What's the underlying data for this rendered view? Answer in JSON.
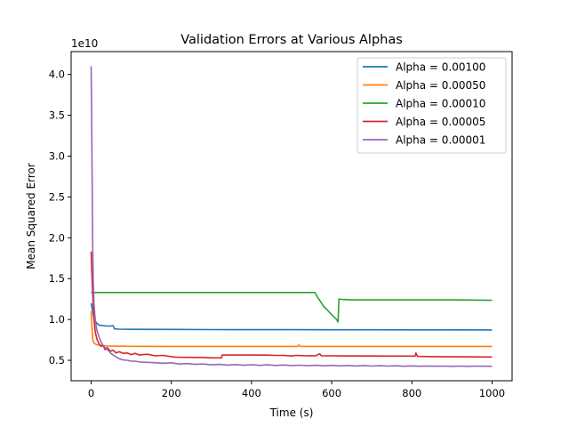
{
  "chart_data": {
    "type": "line",
    "title": "Validation Errors at Various Alphas",
    "xlabel": "Time (s)",
    "ylabel": "Mean Squared Error",
    "y_multiplier_label": "1e10",
    "xlim": [
      -50,
      1050
    ],
    "ylim": [
      0.25,
      4.28
    ],
    "xticks": [
      0,
      200,
      400,
      600,
      800,
      1000
    ],
    "xtick_labels": [
      "0",
      "200",
      "400",
      "600",
      "800",
      "1000"
    ],
    "yticks": [
      0.5,
      1.0,
      1.5,
      2.0,
      2.5,
      3.0,
      3.5,
      4.0
    ],
    "ytick_labels": [
      "0.5",
      "1.0",
      "1.5",
      "2.0",
      "2.5",
      "3.0",
      "3.5",
      "4.0"
    ],
    "grid": false,
    "legend_position": "top-right",
    "series": [
      {
        "name": "Alpha = 0.00100",
        "color": "#1f77b4",
        "points": [
          [
            0,
            1.2
          ],
          [
            3,
            1.12
          ],
          [
            6,
            1.04
          ],
          [
            10,
            0.98
          ],
          [
            15,
            0.95
          ],
          [
            20,
            0.93
          ],
          [
            30,
            0.925
          ],
          [
            40,
            0.92
          ],
          [
            50,
            0.92
          ],
          [
            55,
            0.925
          ],
          [
            58,
            0.885
          ],
          [
            70,
            0.882
          ],
          [
            100,
            0.88
          ],
          [
            200,
            0.878
          ],
          [
            300,
            0.876
          ],
          [
            400,
            0.875
          ],
          [
            500,
            0.875
          ],
          [
            600,
            0.874
          ],
          [
            700,
            0.874
          ],
          [
            800,
            0.873
          ],
          [
            900,
            0.873
          ],
          [
            1000,
            0.872
          ]
        ]
      },
      {
        "name": "Alpha = 0.00050",
        "color": "#ff7f0e",
        "points": [
          [
            0,
            1.1
          ],
          [
            2,
            0.92
          ],
          [
            4,
            0.76
          ],
          [
            6,
            0.72
          ],
          [
            10,
            0.7
          ],
          [
            15,
            0.69
          ],
          [
            20,
            0.685
          ],
          [
            40,
            0.675
          ],
          [
            100,
            0.672
          ],
          [
            200,
            0.67
          ],
          [
            300,
            0.67
          ],
          [
            400,
            0.67
          ],
          [
            500,
            0.67
          ],
          [
            515,
            0.67
          ],
          [
            518,
            0.688
          ],
          [
            522,
            0.67
          ],
          [
            600,
            0.67
          ],
          [
            700,
            0.67
          ],
          [
            800,
            0.67
          ],
          [
            900,
            0.67
          ],
          [
            1000,
            0.67
          ]
        ]
      },
      {
        "name": "Alpha = 0.00010",
        "color": "#2ca02c",
        "points": [
          [
            0,
            1.33
          ],
          [
            100,
            1.33
          ],
          [
            200,
            1.33
          ],
          [
            300,
            1.33
          ],
          [
            400,
            1.33
          ],
          [
            500,
            1.33
          ],
          [
            558,
            1.33
          ],
          [
            565,
            1.27
          ],
          [
            572,
            1.22
          ],
          [
            580,
            1.16
          ],
          [
            588,
            1.12
          ],
          [
            596,
            1.08
          ],
          [
            604,
            1.04
          ],
          [
            612,
            1.0
          ],
          [
            616,
            0.97
          ],
          [
            618,
            1.25
          ],
          [
            625,
            1.245
          ],
          [
            650,
            1.24
          ],
          [
            700,
            1.24
          ],
          [
            800,
            1.24
          ],
          [
            900,
            1.24
          ],
          [
            1000,
            1.235
          ]
        ]
      },
      {
        "name": "Alpha = 0.00005",
        "color": "#d62728",
        "points": [
          [
            0,
            1.83
          ],
          [
            2,
            1.55
          ],
          [
            4,
            1.3
          ],
          [
            6,
            1.05
          ],
          [
            10,
            0.85
          ],
          [
            15,
            0.75
          ],
          [
            20,
            0.7
          ],
          [
            25,
            0.67
          ],
          [
            30,
            0.68
          ],
          [
            35,
            0.63
          ],
          [
            40,
            0.655
          ],
          [
            48,
            0.61
          ],
          [
            55,
            0.625
          ],
          [
            62,
            0.59
          ],
          [
            70,
            0.605
          ],
          [
            80,
            0.585
          ],
          [
            90,
            0.59
          ],
          [
            100,
            0.57
          ],
          [
            110,
            0.585
          ],
          [
            120,
            0.565
          ],
          [
            140,
            0.575
          ],
          [
            160,
            0.555
          ],
          [
            180,
            0.56
          ],
          [
            200,
            0.545
          ],
          [
            210,
            0.54
          ],
          [
            220,
            0.538
          ],
          [
            240,
            0.536
          ],
          [
            260,
            0.535
          ],
          [
            280,
            0.535
          ],
          [
            300,
            0.53
          ],
          [
            325,
            0.53
          ],
          [
            327,
            0.565
          ],
          [
            340,
            0.565
          ],
          [
            380,
            0.565
          ],
          [
            400,
            0.565
          ],
          [
            440,
            0.564
          ],
          [
            460,
            0.56
          ],
          [
            480,
            0.56
          ],
          [
            500,
            0.553
          ],
          [
            510,
            0.56
          ],
          [
            530,
            0.557
          ],
          [
            550,
            0.556
          ],
          [
            560,
            0.555
          ],
          [
            570,
            0.58
          ],
          [
            574,
            0.556
          ],
          [
            600,
            0.555
          ],
          [
            700,
            0.553
          ],
          [
            800,
            0.552
          ],
          [
            808,
            0.552
          ],
          [
            810,
            0.59
          ],
          [
            814,
            0.548
          ],
          [
            850,
            0.545
          ],
          [
            900,
            0.543
          ],
          [
            950,
            0.542
          ],
          [
            1000,
            0.541
          ]
        ]
      },
      {
        "name": "Alpha = 0.00001",
        "color": "#9467bd",
        "points": [
          [
            0,
            4.1
          ],
          [
            1,
            3.6
          ],
          [
            2,
            3.0
          ],
          [
            3,
            2.4
          ],
          [
            4,
            1.9
          ],
          [
            5,
            1.5
          ],
          [
            7,
            1.2
          ],
          [
            10,
            1.0
          ],
          [
            14,
            0.87
          ],
          [
            20,
            0.78
          ],
          [
            25,
            0.72
          ],
          [
            30,
            0.68
          ],
          [
            38,
            0.64
          ],
          [
            45,
            0.61
          ],
          [
            50,
            0.58
          ],
          [
            60,
            0.55
          ],
          [
            70,
            0.52
          ],
          [
            80,
            0.505
          ],
          [
            90,
            0.5
          ],
          [
            100,
            0.49
          ],
          [
            110,
            0.49
          ],
          [
            120,
            0.48
          ],
          [
            140,
            0.475
          ],
          [
            160,
            0.47
          ],
          [
            180,
            0.465
          ],
          [
            200,
            0.47
          ],
          [
            220,
            0.455
          ],
          [
            240,
            0.46
          ],
          [
            260,
            0.45
          ],
          [
            280,
            0.455
          ],
          [
            300,
            0.445
          ],
          [
            320,
            0.45
          ],
          [
            340,
            0.442
          ],
          [
            360,
            0.448
          ],
          [
            380,
            0.44
          ],
          [
            400,
            0.446
          ],
          [
            420,
            0.438
          ],
          [
            440,
            0.445
          ],
          [
            460,
            0.437
          ],
          [
            480,
            0.443
          ],
          [
            500,
            0.436
          ],
          [
            520,
            0.441
          ],
          [
            540,
            0.434
          ],
          [
            560,
            0.44
          ],
          [
            580,
            0.433
          ],
          [
            600,
            0.438
          ],
          [
            620,
            0.432
          ],
          [
            640,
            0.437
          ],
          [
            660,
            0.431
          ],
          [
            680,
            0.436
          ],
          [
            700,
            0.43
          ],
          [
            720,
            0.434
          ],
          [
            740,
            0.43
          ],
          [
            760,
            0.433
          ],
          [
            780,
            0.428
          ],
          [
            800,
            0.432
          ],
          [
            820,
            0.428
          ],
          [
            840,
            0.431
          ],
          [
            860,
            0.427
          ],
          [
            880,
            0.43
          ],
          [
            900,
            0.426
          ],
          [
            920,
            0.43
          ],
          [
            940,
            0.426
          ],
          [
            960,
            0.43
          ],
          [
            980,
            0.427
          ],
          [
            1000,
            0.428
          ]
        ]
      }
    ]
  }
}
